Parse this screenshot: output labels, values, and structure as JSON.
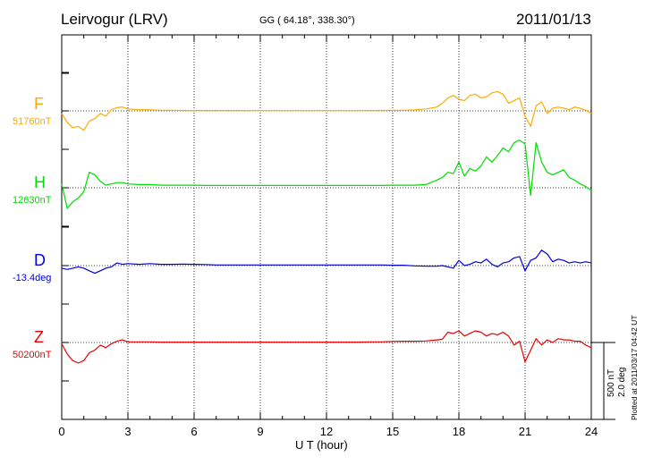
{
  "header": {
    "station": "Leirvogur (LRV)",
    "coords": "GG ( 64.18°, 338.30°)",
    "date": "2011/01/13"
  },
  "footer": {
    "plotted_at": "Plotted at 2011/03/17 04:42 UT"
  },
  "scale_bar": {
    "nt": "500 nT",
    "deg": "2.0 deg"
  },
  "chart_data": {
    "type": "line",
    "title": "Leirvogur (LRV)",
    "xlabel": "U T (hour)",
    "xlim": [
      0,
      24
    ],
    "x_ticks": [
      "0",
      "3",
      "6",
      "9",
      "12",
      "15",
      "18",
      "21",
      "24"
    ],
    "grid": "vertical dotted lines every 3 hours; dotted baseline per channel",
    "x": [
      0,
      0.25,
      0.5,
      0.75,
      1,
      1.25,
      1.5,
      1.75,
      2,
      2.25,
      2.5,
      2.75,
      3,
      3.5,
      4,
      4.5,
      5,
      5.5,
      6,
      6.5,
      7,
      7.5,
      8,
      8.5,
      9,
      9.5,
      10,
      10.5,
      11,
      11.5,
      12,
      12.5,
      13,
      13.5,
      14,
      14.5,
      15,
      15.5,
      16,
      16.5,
      17,
      17.25,
      17.5,
      17.75,
      18,
      18.25,
      18.5,
      18.75,
      19,
      19.25,
      19.5,
      19.75,
      20,
      20.25,
      20.5,
      20.75,
      21,
      21.25,
      21.5,
      21.75,
      22,
      22.25,
      22.5,
      22.75,
      23,
      23.25,
      23.5,
      23.75,
      24
    ],
    "series": [
      {
        "name": "F",
        "baseline": "51760nT",
        "color": "#ffaa00",
        "offsets_nt": [
          -20,
          -90,
          -130,
          -120,
          -150,
          -80,
          -60,
          -20,
          -40,
          10,
          25,
          30,
          15,
          10,
          8,
          5,
          5,
          3,
          3,
          3,
          3,
          3,
          3,
          2,
          2,
          2,
          2,
          2,
          2,
          2,
          2,
          2,
          2,
          2,
          3,
          3,
          5,
          5,
          8,
          15,
          30,
          60,
          100,
          120,
          90,
          80,
          120,
          130,
          100,
          110,
          140,
          150,
          130,
          60,
          80,
          100,
          -40,
          -120,
          40,
          70,
          -20,
          20,
          30,
          20,
          10,
          30,
          20,
          5,
          -20
        ]
      },
      {
        "name": "H",
        "baseline": "12630nT",
        "color": "#00dd00",
        "offsets_nt": [
          30,
          -160,
          -110,
          -80,
          -30,
          120,
          100,
          50,
          20,
          30,
          40,
          40,
          30,
          25,
          25,
          20,
          20,
          20,
          20,
          18,
          18,
          18,
          18,
          18,
          18,
          18,
          18,
          18,
          18,
          18,
          18,
          18,
          18,
          18,
          18,
          18,
          20,
          20,
          20,
          25,
          60,
          80,
          120,
          110,
          200,
          90,
          150,
          130,
          170,
          240,
          200,
          250,
          310,
          280,
          350,
          370,
          340,
          -60,
          350,
          200,
          120,
          100,
          120,
          140,
          80,
          60,
          30,
          10,
          -20
        ]
      },
      {
        "name": "D",
        "baseline": "-13.4deg",
        "color": "#0000dd",
        "offsets_nt": [
          -20,
          -30,
          -20,
          -10,
          -20,
          -40,
          -60,
          -40,
          -20,
          -10,
          20,
          10,
          15,
          10,
          15,
          10,
          10,
          12,
          10,
          8,
          5,
          5,
          5,
          5,
          5,
          5,
          5,
          5,
          5,
          5,
          5,
          5,
          5,
          5,
          5,
          5,
          3,
          3,
          -2,
          -5,
          -5,
          0,
          -10,
          -20,
          40,
          0,
          10,
          30,
          20,
          50,
          10,
          -10,
          20,
          30,
          60,
          70,
          -40,
          40,
          60,
          120,
          90,
          30,
          50,
          40,
          20,
          30,
          20,
          30,
          20
        ]
      },
      {
        "name": "Z",
        "baseline": "50200nT",
        "color": "#ee0000",
        "offsets_nt": [
          -10,
          -90,
          -140,
          -160,
          -140,
          -80,
          -60,
          -20,
          -40,
          -10,
          10,
          20,
          5,
          5,
          5,
          3,
          3,
          3,
          3,
          3,
          3,
          3,
          3,
          3,
          3,
          3,
          3,
          3,
          3,
          3,
          3,
          3,
          3,
          3,
          5,
          5,
          8,
          10,
          10,
          12,
          20,
          25,
          80,
          70,
          90,
          50,
          70,
          90,
          80,
          50,
          70,
          60,
          80,
          50,
          -20,
          10,
          -150,
          -60,
          30,
          -20,
          20,
          0,
          30,
          20,
          20,
          10,
          10,
          -20,
          -40
        ]
      }
    ]
  }
}
